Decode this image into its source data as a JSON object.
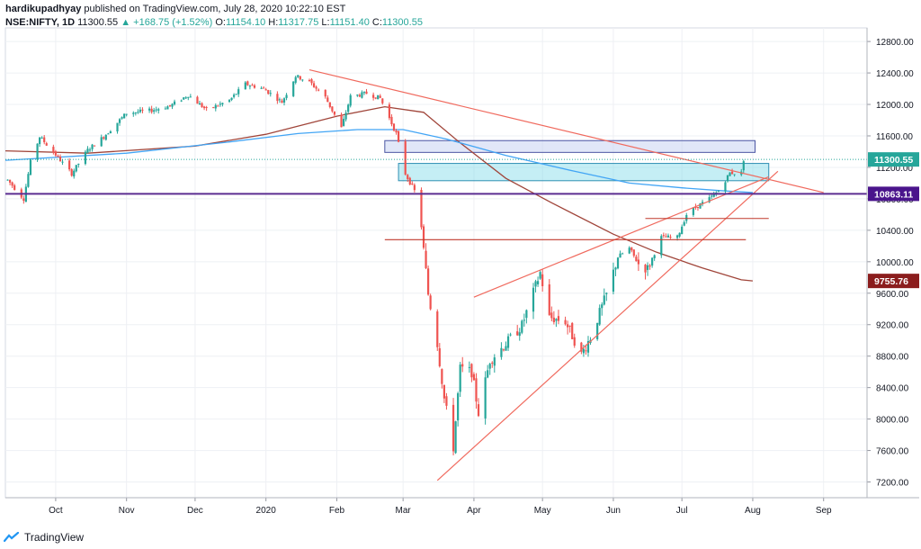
{
  "header": {
    "author": "hardikupadhyay",
    "published_text": "published on TradingView.com, July 28, 2020 10:22:10 EST",
    "symbol": "NSE:NIFTY, 1D",
    "last": "11300.55",
    "change": "+168.75 (+1.52%)",
    "o_label": "O:",
    "o_value": "11154.10",
    "h_label": "H:",
    "h_value": "11317.75",
    "l_label": "L:",
    "l_value": "11151.40",
    "c_label": "C:",
    "c_value": "11300.55"
  },
  "footer": {
    "brand": "TradingView"
  },
  "colors": {
    "up": "#26a69a",
    "down": "#ef5350",
    "trend": "#f06a5e",
    "ma_brown": "#a0453a",
    "ma_blue": "#42a5f5",
    "support": "#5b2d91",
    "zone_fill": "#7fd9e8",
    "zone2_fill": "#c9d3f2"
  },
  "chart_data": {
    "type": "candlestick",
    "instrument": "NSE:NIFTY",
    "timeframe": "1D",
    "ylim": [
      7000,
      12950
    ],
    "y_ticks": [
      7200,
      7600,
      8000,
      8400,
      8800,
      9200,
      9600,
      10000,
      10400,
      10800,
      11200,
      11600,
      12000,
      12400,
      12800
    ],
    "y_tick_labels": [
      "7200.00",
      "7600.00",
      "8000.00",
      "8400.00",
      "8800.00",
      "9200.00",
      "9600.00",
      "10000.00",
      "10400.00",
      "10800.00",
      "11200.00",
      "11600.00",
      "12000.00",
      "12400.00",
      "12800.00"
    ],
    "x_labels": [
      "Oct",
      "Nov",
      "Dec",
      "2020",
      "Feb",
      "Mar",
      "Apr",
      "May",
      "Jun",
      "Jul",
      "Aug",
      "Sep"
    ],
    "x_label_dates": [
      "2019-10-01",
      "2019-11-01",
      "2019-12-01",
      "2020-01-01",
      "2020-02-01",
      "2020-03-01",
      "2020-04-01",
      "2020-05-01",
      "2020-06-01",
      "2020-07-01",
      "2020-08-01",
      "2020-09-01"
    ],
    "date_range": [
      "2019-09-09",
      "2020-09-20"
    ],
    "price_labels": [
      {
        "text": "11300.55",
        "value": 11300.55,
        "color": "#26a69a"
      },
      {
        "text": "10863.11",
        "value": 10863.11,
        "color": "#4a148c"
      },
      {
        "text": "9755.76",
        "value": 9755.76,
        "color": "#8b1d1d"
      }
    ],
    "close_path": [
      [
        "2019-09-10",
        11040
      ],
      [
        "2019-09-17",
        10800
      ],
      [
        "2019-09-20",
        11270
      ],
      [
        "2019-09-24",
        11590
      ],
      [
        "2019-10-01",
        11360
      ],
      [
        "2019-10-08",
        11120
      ],
      [
        "2019-10-15",
        11420
      ],
      [
        "2019-10-22",
        11590
      ],
      [
        "2019-11-01",
        11890
      ],
      [
        "2019-11-11",
        11920
      ],
      [
        "2019-11-20",
        11980
      ],
      [
        "2019-11-28",
        12120
      ],
      [
        "2019-12-06",
        11930
      ],
      [
        "2019-12-16",
        12050
      ],
      [
        "2019-12-23",
        12260
      ],
      [
        "2019-12-31",
        12200
      ],
      [
        "2020-01-08",
        12030
      ],
      [
        "2020-01-14",
        12360
      ],
      [
        "2020-01-20",
        12290
      ],
      [
        "2020-01-27",
        12090
      ],
      [
        "2020-02-03",
        11700
      ],
      [
        "2020-02-07",
        12100
      ],
      [
        "2020-02-14",
        12140
      ],
      [
        "2020-02-20",
        12080
      ],
      [
        "2020-02-27",
        11630
      ],
      [
        "2020-03-02",
        11120
      ],
      [
        "2020-03-06",
        10900
      ],
      [
        "2020-03-09",
        10450
      ],
      [
        "2020-03-12",
        9590
      ],
      [
        "2020-03-16",
        8960
      ],
      [
        "2020-03-19",
        8260
      ],
      [
        "2020-03-23",
        7640
      ],
      [
        "2020-03-26",
        8640
      ],
      [
        "2020-03-31",
        8600
      ],
      [
        "2020-04-03",
        8080
      ],
      [
        "2020-04-08",
        8750
      ],
      [
        "2020-04-16",
        8990
      ],
      [
        "2020-04-22",
        9190
      ],
      [
        "2020-04-30",
        9860
      ],
      [
        "2020-05-04",
        9290
      ],
      [
        "2020-05-11",
        9240
      ],
      [
        "2020-05-18",
        8820
      ],
      [
        "2020-05-22",
        9040
      ],
      [
        "2020-05-29",
        9580
      ],
      [
        "2020-06-03",
        10060
      ],
      [
        "2020-06-08",
        10170
      ],
      [
        "2020-06-12",
        9970
      ],
      [
        "2020-06-16",
        9910
      ],
      [
        "2020-06-22",
        10310
      ],
      [
        "2020-06-29",
        10310
      ],
      [
        "2020-07-03",
        10600
      ],
      [
        "2020-07-08",
        10710
      ],
      [
        "2020-07-13",
        10800
      ],
      [
        "2020-07-17",
        10900
      ],
      [
        "2020-07-22",
        11130
      ],
      [
        "2020-07-27",
        11130
      ],
      [
        "2020-07-28",
        11300
      ]
    ],
    "indicators": [
      {
        "kind": "moving_average",
        "color": "#a0453a",
        "points": [
          [
            "2019-09-09",
            11410
          ],
          [
            "2019-10-15",
            11380
          ],
          [
            "2019-12-01",
            11470
          ],
          [
            "2020-01-01",
            11620
          ],
          [
            "2020-02-01",
            11850
          ],
          [
            "2020-02-22",
            11970
          ],
          [
            "2020-03-10",
            11900
          ],
          [
            "2020-03-26",
            11510
          ],
          [
            "2020-04-15",
            11060
          ],
          [
            "2020-05-05",
            10750
          ],
          [
            "2020-06-01",
            10350
          ],
          [
            "2020-06-20",
            10120
          ],
          [
            "2020-07-10",
            9920
          ],
          [
            "2020-07-27",
            9770
          ],
          [
            "2020-08-01",
            9756
          ]
        ]
      },
      {
        "kind": "moving_average",
        "color": "#42a5f5",
        "points": [
          [
            "2019-09-09",
            11290
          ],
          [
            "2019-11-01",
            11380
          ],
          [
            "2019-12-15",
            11520
          ],
          [
            "2020-01-15",
            11630
          ],
          [
            "2020-02-10",
            11680
          ],
          [
            "2020-03-01",
            11680
          ],
          [
            "2020-03-20",
            11560
          ],
          [
            "2020-04-15",
            11350
          ],
          [
            "2020-05-15",
            11150
          ],
          [
            "2020-06-08",
            11000
          ],
          [
            "2020-07-01",
            10940
          ],
          [
            "2020-07-20",
            10900
          ],
          [
            "2020-08-01",
            10880
          ]
        ]
      }
    ],
    "annotations": [
      {
        "kind": "trendline",
        "from": [
          "2020-01-20",
          12440
        ],
        "to": [
          "2020-09-01",
          10880
        ]
      },
      {
        "kind": "trendline",
        "from": [
          "2020-03-16",
          7220
        ],
        "to": [
          "2020-08-12",
          11150
        ]
      },
      {
        "kind": "trendline",
        "from": [
          "2020-04-01",
          9550
        ],
        "to": [
          "2020-08-08",
          11080
        ]
      },
      {
        "kind": "horizontal_line",
        "value": 10863.11,
        "color": "#5b2d91"
      },
      {
        "kind": "horizontal_segment",
        "value": 10280,
        "from": "2020-02-22",
        "to": "2020-07-29"
      },
      {
        "kind": "horizontal_segment",
        "value": 10550,
        "from": "2020-06-15",
        "to": "2020-08-08"
      },
      {
        "kind": "zone",
        "from": "2020-02-22",
        "to": "2020-08-02",
        "y_bottom": 11390,
        "y_top": 11540
      },
      {
        "kind": "zone",
        "from": "2020-02-28",
        "to": "2020-08-08",
        "y_bottom": 11030,
        "y_top": 11250
      }
    ]
  }
}
